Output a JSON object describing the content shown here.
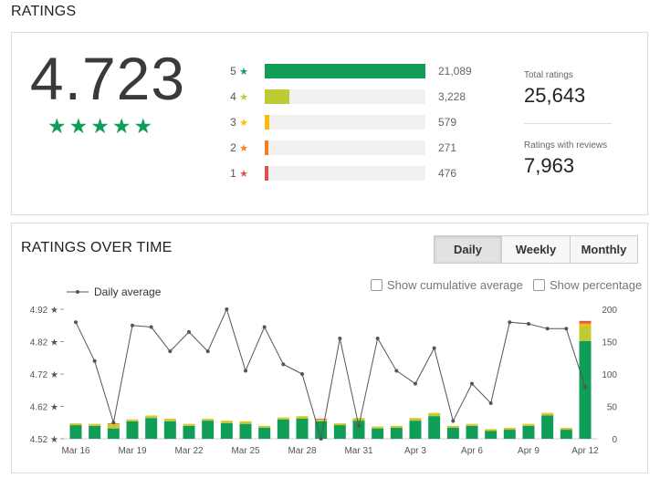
{
  "ratings_section": {
    "title": "RATINGS",
    "average": "4.723",
    "stars": [
      "★",
      "★",
      "★",
      "★",
      "★"
    ],
    "distribution": [
      {
        "label": "5",
        "count": "21,089",
        "value": 21089,
        "color": "#0f9d58"
      },
      {
        "label": "4",
        "count": "3,228",
        "value": 3228,
        "color": "#c0ca33"
      },
      {
        "label": "3",
        "count": "579",
        "value": 579,
        "color": "#fbbc05"
      },
      {
        "label": "2",
        "count": "271",
        "value": 271,
        "color": "#f48024"
      },
      {
        "label": "1",
        "count": "476",
        "value": 476,
        "color": "#d9534f"
      }
    ],
    "star_glyph": "★",
    "total_ratings_label": "Total ratings",
    "total_ratings_value": "25,643",
    "ratings_with_reviews_label": "Ratings with reviews",
    "ratings_with_reviews_value": "7,963"
  },
  "over_time_section": {
    "title": "RATINGS OVER TIME",
    "buttons": [
      "Daily",
      "Weekly",
      "Monthly"
    ],
    "active_button": "Daily",
    "show_cumulative_label": "Show cumulative average",
    "show_percentage_label": "Show percentage",
    "legend_label": "Daily average"
  },
  "chart_data": {
    "type": "bar",
    "x_tick_labels": [
      "Mar 16",
      "Mar 19",
      "Mar 22",
      "Mar 25",
      "Mar 28",
      "Mar 31",
      "Apr 3",
      "Apr 6",
      "Apr 9",
      "Apr 12"
    ],
    "left_axis_ticks": [
      "4.92 ★",
      "4.82 ★",
      "4.72 ★",
      "4.62 ★",
      "4.52 ★"
    ],
    "right_axis_ticks": [
      "200",
      "150",
      "100",
      "50",
      "0"
    ],
    "left_ylim": [
      4.52,
      4.92
    ],
    "right_ylim": [
      0,
      200
    ],
    "line_series": {
      "name": "Daily average",
      "values": [
        4.88,
        4.76,
        4.57,
        4.87,
        4.865,
        4.79,
        4.85,
        4.79,
        4.92,
        4.73,
        4.865,
        4.75,
        4.72,
        4.52,
        4.83,
        4.56,
        4.83,
        4.73,
        4.69,
        4.8,
        4.575,
        4.69,
        4.63,
        4.88,
        4.875,
        4.86,
        4.86,
        4.68
      ]
    },
    "bar_series": [
      {
        "name": "5",
        "color": "#0f9d58",
        "values": [
          21,
          20,
          16,
          27,
          32,
          27,
          20,
          28,
          24,
          23,
          17,
          30,
          31,
          27,
          21,
          28,
          16,
          17,
          28,
          35,
          17,
          20,
          12,
          14,
          20,
          36,
          14,
          151
        ]
      },
      {
        "name": "4",
        "color": "#c0ca33",
        "values": [
          2,
          2,
          6,
          2,
          3,
          3,
          2,
          2,
          3,
          3,
          2,
          2,
          3,
          2,
          2,
          3,
          2,
          2,
          3,
          4,
          2,
          2,
          2,
          2,
          2,
          3,
          2,
          23
        ]
      },
      {
        "name": "3",
        "color": "#fbbc05",
        "values": [
          1,
          1,
          1,
          1,
          1,
          1,
          1,
          1,
          1,
          1,
          1,
          1,
          1,
          1,
          1,
          1,
          1,
          1,
          1,
          1,
          1,
          1,
          1,
          1,
          1,
          1,
          1,
          3
        ]
      },
      {
        "name": "2",
        "color": "#f48024",
        "values": [
          0,
          0,
          0,
          0,
          0,
          0,
          0,
          0,
          0,
          0,
          0,
          0,
          0,
          0,
          0,
          0,
          0,
          0,
          0,
          0,
          0,
          0,
          0,
          0,
          0,
          0,
          0,
          2
        ]
      },
      {
        "name": "1",
        "color": "#d9534f",
        "values": [
          0,
          0,
          1,
          0,
          0,
          0,
          0,
          0,
          0,
          0,
          0,
          0,
          0,
          1,
          0,
          0,
          0,
          0,
          0,
          0,
          0,
          0,
          0,
          0,
          0,
          0,
          0,
          3
        ]
      }
    ]
  }
}
